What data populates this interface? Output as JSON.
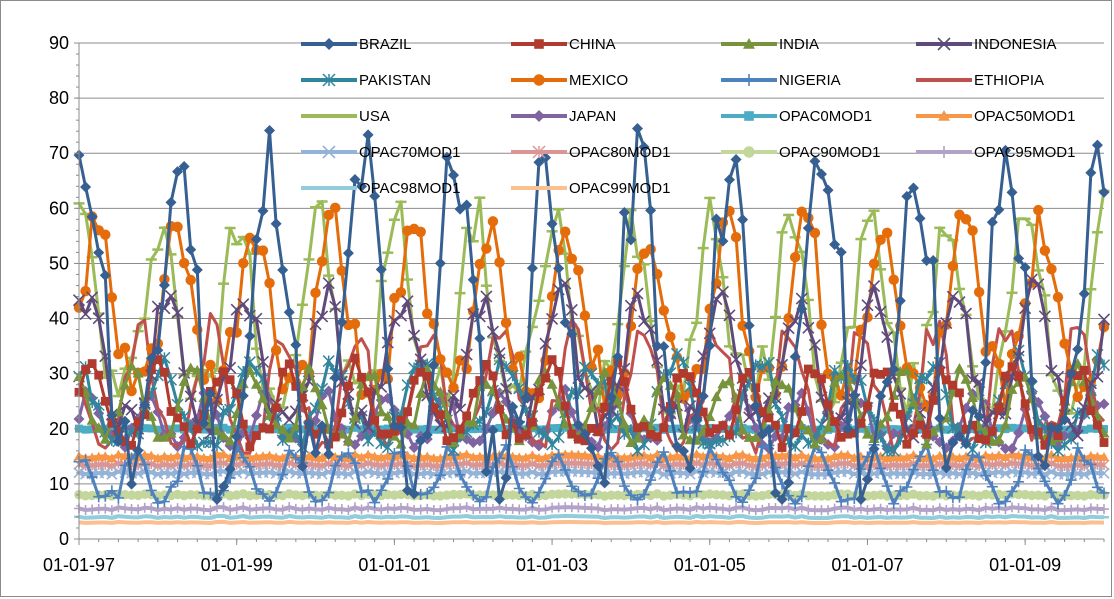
{
  "chart_data": {
    "type": "line",
    "title": "",
    "xlabel": "",
    "ylabel": "",
    "ylim": [
      0,
      90
    ],
    "yticks": [
      "0",
      "10",
      "20",
      "30",
      "40",
      "50",
      "60",
      "70",
      "80",
      "90"
    ],
    "x_start": "1997-01",
    "x_months": 156,
    "xticks": [
      {
        "label": "01-01-97",
        "month": 0
      },
      {
        "label": "01-01-99",
        "month": 24
      },
      {
        "label": "01-01-01",
        "month": 48
      },
      {
        "label": "01-01-03",
        "month": 72
      },
      {
        "label": "01-01-05",
        "month": 96
      },
      {
        "label": "01-01-07",
        "month": 120
      },
      {
        "label": "01-01-09",
        "month": 144
      }
    ],
    "grid": "horizontal",
    "legend_position": "top",
    "series": [
      {
        "name": "BRAZIL",
        "color": "#376092",
        "marker": "diamond",
        "kind": "seasonal",
        "base": 30,
        "amp": 38,
        "period": 14,
        "phase": 1.0,
        "seed": 11
      },
      {
        "name": "CHINA",
        "color": "#b03a2e",
        "marker": "square",
        "kind": "seasonal",
        "base": 22,
        "amp": 9,
        "period": 10,
        "phase": 0.3,
        "seed": 23
      },
      {
        "name": "INDIA",
        "color": "#77933c",
        "marker": "triangle",
        "kind": "seasonal",
        "base": 22,
        "amp": 8,
        "period": 9,
        "phase": 2.1,
        "seed": 37
      },
      {
        "name": "INDONESIA",
        "color": "#604a7b",
        "marker": "x",
        "kind": "seasonal",
        "base": 28,
        "amp": 16,
        "period": 12,
        "phase": 0.8,
        "seed": 41
      },
      {
        "name": "PAKISTAN",
        "color": "#31859c",
        "marker": "star",
        "kind": "seasonal",
        "base": 22,
        "amp": 10,
        "period": 13,
        "phase": 1.7,
        "seed": 53
      },
      {
        "name": "MEXICO",
        "color": "#e46c0a",
        "marker": "circle",
        "kind": "seasonal",
        "base": 36,
        "amp": 20,
        "period": 12,
        "phase": 0.2,
        "seed": 61
      },
      {
        "name": "NIGERIA",
        "color": "#4f81bd",
        "marker": "plus",
        "kind": "seasonal",
        "base": 10,
        "amp": 6,
        "period": 8,
        "phase": 1.1,
        "seed": 71
      },
      {
        "name": "ETHIOPIA",
        "color": "#c0504d",
        "marker": "none",
        "kind": "seasonal",
        "base": 24,
        "amp": 14,
        "period": 11,
        "phase": 2.6,
        "seed": 83
      },
      {
        "name": "USA",
        "color": "#9bbb59",
        "marker": "dash",
        "kind": "seasonal",
        "base": 36,
        "amp": 22,
        "period": 12,
        "phase": 1.4,
        "seed": 97
      },
      {
        "name": "JAPAN",
        "color": "#8064a2",
        "marker": "diamond",
        "kind": "seasonal",
        "base": 20,
        "amp": 6,
        "period": 9,
        "phase": 0.5,
        "seed": 101
      },
      {
        "name": "OPAC0MOD1",
        "color": "#4bacc6",
        "marker": "square",
        "kind": "flat",
        "base": 20,
        "amp": 0.2
      },
      {
        "name": "OPAC50MOD1",
        "color": "#f79646",
        "marker": "triangle",
        "kind": "flat",
        "base": 15,
        "amp": 0.4
      },
      {
        "name": "OPAC70MOD1",
        "color": "#95b3d7",
        "marker": "x",
        "kind": "flat",
        "base": 12,
        "amp": 0.3
      },
      {
        "name": "OPAC80MOD1",
        "color": "#d99694",
        "marker": "star",
        "kind": "flat",
        "base": 13.5,
        "amp": 0.3
      },
      {
        "name": "OPAC90MOD1",
        "color": "#c3d69b",
        "marker": "circle",
        "kind": "flat",
        "base": 8,
        "amp": 0.2
      },
      {
        "name": "OPAC95MOD1",
        "color": "#b3a2c7",
        "marker": "plus",
        "kind": "flat",
        "base": 5.5,
        "amp": 0.3
      },
      {
        "name": "OPAC98MOD1",
        "color": "#93cddd",
        "marker": "dash",
        "kind": "flat",
        "base": 4,
        "amp": 0.2
      },
      {
        "name": "OPAC99MOD1",
        "color": "#fac090",
        "marker": "none",
        "kind": "flat",
        "base": 3,
        "amp": 0.1
      }
    ]
  }
}
